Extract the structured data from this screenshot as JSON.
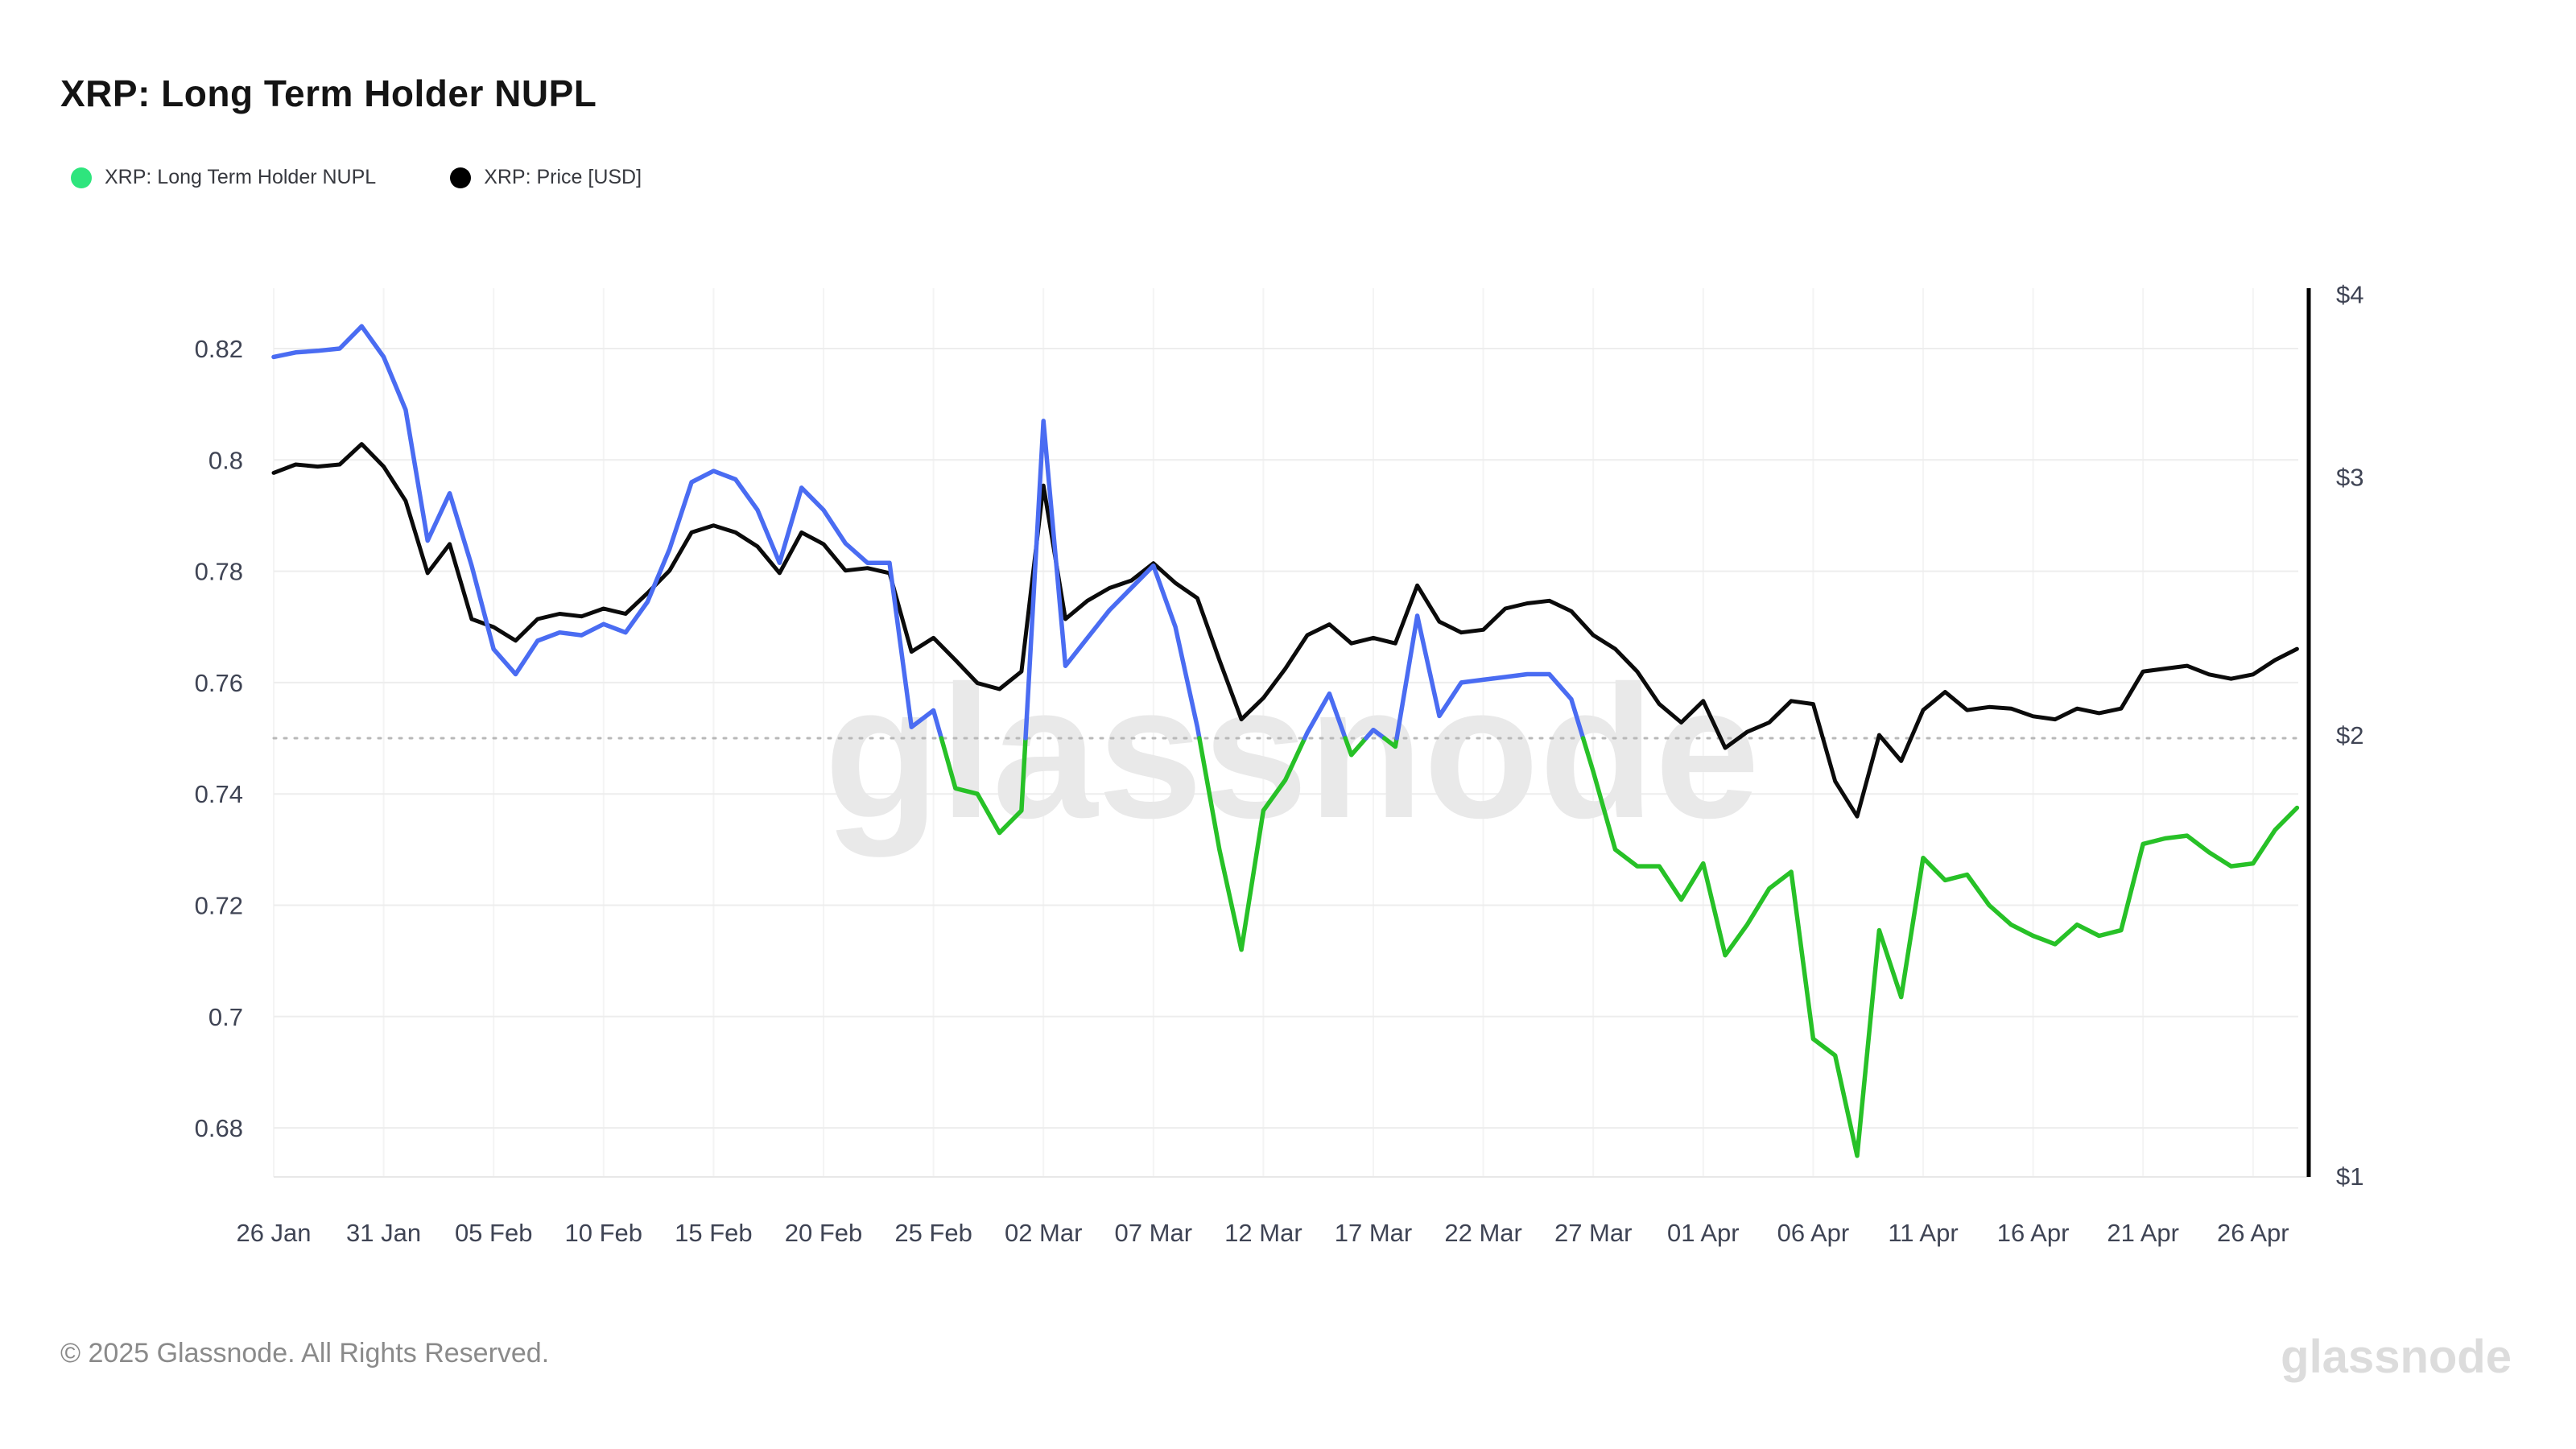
{
  "title": "XRP: Long Term Holder NUPL",
  "legend": {
    "items": [
      {
        "label": "XRP: Long Term Holder NUPL",
        "color": "#2ee57d"
      },
      {
        "label": "XRP: Price [USD]",
        "color": "#000000"
      }
    ]
  },
  "watermark": "glassnode",
  "footer": {
    "copyright": "© 2025 Glassnode. All Rights Reserved.",
    "brand": "glassnode"
  },
  "chart_data": {
    "type": "line",
    "title": "XRP: Long Term Holder NUPL",
    "x": [
      "26 Jan",
      "27 Jan",
      "28 Jan",
      "29 Jan",
      "30 Jan",
      "31 Jan",
      "01 Feb",
      "02 Feb",
      "03 Feb",
      "04 Feb",
      "05 Feb",
      "06 Feb",
      "07 Feb",
      "08 Feb",
      "09 Feb",
      "10 Feb",
      "11 Feb",
      "12 Feb",
      "13 Feb",
      "14 Feb",
      "15 Feb",
      "16 Feb",
      "17 Feb",
      "18 Feb",
      "19 Feb",
      "20 Feb",
      "21 Feb",
      "22 Feb",
      "23 Feb",
      "24 Feb",
      "25 Feb",
      "26 Feb",
      "27 Feb",
      "28 Feb",
      "01 Mar",
      "02 Mar",
      "03 Mar",
      "04 Mar",
      "05 Mar",
      "06 Mar",
      "07 Mar",
      "08 Mar",
      "09 Mar",
      "10 Mar",
      "11 Mar",
      "12 Mar",
      "13 Mar",
      "14 Mar",
      "15 Mar",
      "16 Mar",
      "17 Mar",
      "18 Mar",
      "19 Mar",
      "20 Mar",
      "21 Mar",
      "22 Mar",
      "23 Mar",
      "24 Mar",
      "25 Mar",
      "26 Mar",
      "27 Mar",
      "28 Mar",
      "29 Mar",
      "30 Mar",
      "31 Mar",
      "01 Apr",
      "02 Apr",
      "03 Apr",
      "04 Apr",
      "05 Apr",
      "06 Apr",
      "07 Apr",
      "08 Apr",
      "09 Apr",
      "10 Apr",
      "11 Apr",
      "12 Apr",
      "13 Apr",
      "14 Apr",
      "15 Apr",
      "16 Apr",
      "17 Apr",
      "18 Apr",
      "19 Apr",
      "20 Apr",
      "21 Apr",
      "22 Apr",
      "23 Apr",
      "24 Apr",
      "25 Apr",
      "26 Apr",
      "27 Apr",
      "28 Apr"
    ],
    "series": [
      {
        "name": "XRP: Long Term Holder NUPL",
        "axis": "left",
        "threshold": 0.75,
        "color_above": "#4a6cf2",
        "color_below": "#27c127",
        "values": [
          0.8185,
          0.8193,
          0.8196,
          0.82,
          0.824,
          0.8185,
          0.809,
          0.7855,
          0.794,
          0.781,
          0.766,
          0.7615,
          0.7675,
          0.769,
          0.7685,
          0.7705,
          0.769,
          0.7745,
          0.784,
          0.796,
          0.798,
          0.7965,
          0.791,
          0.7815,
          0.795,
          0.791,
          0.785,
          0.7815,
          0.7815,
          0.752,
          0.755,
          0.741,
          0.74,
          0.733,
          0.737,
          0.807,
          0.763,
          0.768,
          0.773,
          0.777,
          0.781,
          0.77,
          0.752,
          0.73,
          0.712,
          0.737,
          0.7425,
          0.751,
          0.758,
          0.747,
          0.7515,
          0.7485,
          0.772,
          0.754,
          0.76,
          0.7605,
          0.761,
          0.7615,
          0.7615,
          0.757,
          0.744,
          0.73,
          0.727,
          0.727,
          0.721,
          0.7275,
          0.711,
          0.7165,
          0.723,
          0.726,
          0.696,
          0.693,
          0.675,
          0.7155,
          0.7035,
          0.7285,
          0.7245,
          0.7255,
          0.72,
          0.7165,
          0.7145,
          0.713,
          0.7165,
          0.7145,
          0.7155,
          0.731,
          0.732,
          0.7325,
          0.7295,
          0.727,
          0.7275,
          0.7335,
          0.7375
        ]
      },
      {
        "name": "XRP: Price [USD]",
        "axis": "right",
        "color": "#0b0b0b",
        "values": [
          3.02,
          3.06,
          3.05,
          3.06,
          3.16,
          3.05,
          2.89,
          2.58,
          2.7,
          2.4,
          2.37,
          2.32,
          2.4,
          2.42,
          2.41,
          2.44,
          2.42,
          2.5,
          2.59,
          2.75,
          2.78,
          2.75,
          2.69,
          2.58,
          2.75,
          2.7,
          2.59,
          2.6,
          2.58,
          2.28,
          2.33,
          2.25,
          2.17,
          2.15,
          2.21,
          2.96,
          2.4,
          2.47,
          2.52,
          2.55,
          2.62,
          2.54,
          2.48,
          2.25,
          2.05,
          2.12,
          2.22,
          2.34,
          2.38,
          2.31,
          2.33,
          2.31,
          2.53,
          2.39,
          2.35,
          2.36,
          2.44,
          2.46,
          2.47,
          2.43,
          2.34,
          2.29,
          2.21,
          2.1,
          2.04,
          2.11,
          1.96,
          2.01,
          2.04,
          2.11,
          2.1,
          1.86,
          1.76,
          2.0,
          1.92,
          2.08,
          2.14,
          2.08,
          2.09,
          2.085,
          2.06,
          2.05,
          2.085,
          2.07,
          2.085,
          2.21,
          2.22,
          2.23,
          2.2,
          2.185,
          2.2,
          2.25,
          2.29
        ]
      }
    ],
    "left_axis": {
      "ticks": [
        {
          "label": "0.82",
          "value": 0.82
        },
        {
          "label": "0.8",
          "value": 0.8
        },
        {
          "label": "0.78",
          "value": 0.78
        },
        {
          "label": "0.76",
          "value": 0.76
        },
        {
          "label": "0.74",
          "value": 0.74
        },
        {
          "label": "0.72",
          "value": 0.72
        },
        {
          "label": "0.7",
          "value": 0.7
        },
        {
          "label": "0.68",
          "value": 0.68
        }
      ],
      "range": [
        0.671,
        0.831
      ]
    },
    "right_axis": {
      "scale": "log",
      "ticks": [
        {
          "label": "$4",
          "value": 4
        },
        {
          "label": "$3",
          "value": 3
        },
        {
          "label": "$2",
          "value": 2
        },
        {
          "label": "$1",
          "value": 1
        }
      ],
      "range": [
        1,
        4.06
      ]
    },
    "x_ticks": [
      {
        "label": "26 Jan",
        "i": 0
      },
      {
        "label": "31 Jan",
        "i": 5
      },
      {
        "label": "05 Feb",
        "i": 10
      },
      {
        "label": "10 Feb",
        "i": 15
      },
      {
        "label": "15 Feb",
        "i": 20
      },
      {
        "label": "20 Feb",
        "i": 25
      },
      {
        "label": "25 Feb",
        "i": 30
      },
      {
        "label": "02 Mar",
        "i": 35
      },
      {
        "label": "07 Mar",
        "i": 40
      },
      {
        "label": "12 Mar",
        "i": 45
      },
      {
        "label": "17 Mar",
        "i": 50
      },
      {
        "label": "22 Mar",
        "i": 55
      },
      {
        "label": "27 Mar",
        "i": 60
      },
      {
        "label": "01 Apr",
        "i": 65
      },
      {
        "label": "06 Apr",
        "i": 70
      },
      {
        "label": "11 Apr",
        "i": 75
      },
      {
        "label": "16 Apr",
        "i": 80
      },
      {
        "label": "21 Apr",
        "i": 85
      },
      {
        "label": "26 Apr",
        "i": 90
      }
    ],
    "reference_line": {
      "value": 0.75,
      "style": "dotted",
      "color": "#b8b8b8"
    },
    "grid": true,
    "legend_position": "top-left"
  }
}
